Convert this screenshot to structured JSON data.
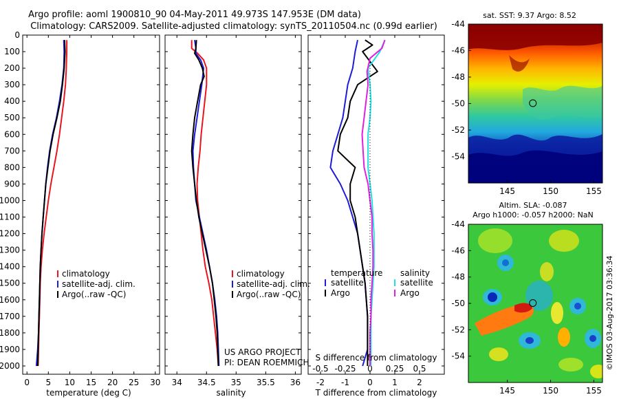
{
  "header": {
    "title_line1": "Argo profile: aoml 1900810_90 04-May-2011 49.973S 147.953E (DM data)",
    "title_line2": "Climatology: CARS2009. Satellite-adjusted climatology: synTS_20110504.nc (0.99d earlier)"
  },
  "credits": {
    "project": "US ARGO PROJECT",
    "pi": "PI: DEAN ROEMMICH",
    "imos": "©IMOS 03-Aug-2017 03:36:34"
  },
  "colors": {
    "climatology": "#e8141e",
    "satellite": "#1c1cd6",
    "argo": "#000000",
    "salinity_satellite": "#22e0e0",
    "salinity_argo": "#e020e0"
  },
  "chart_data": [
    {
      "id": "temperature",
      "type": "line",
      "xlabel": "temperature (deg C)",
      "xlim": [
        -1,
        31
      ],
      "xticks": [
        0,
        5,
        10,
        15,
        20,
        25,
        30
      ],
      "ylim": [
        0,
        2050
      ],
      "yticks": [
        0,
        100,
        200,
        300,
        400,
        500,
        600,
        700,
        800,
        900,
        1000,
        1100,
        1200,
        1300,
        1400,
        1500,
        1600,
        1700,
        1800,
        1900,
        2000
      ],
      "y_reversed": true,
      "legend": [
        "climatology",
        "satellite-adj. clim.",
        "Argo(..raw -QC)"
      ],
      "series": [
        {
          "name": "climatology",
          "color_key": "climatology",
          "points": [
            [
              9.3,
              30
            ],
            [
              9.3,
              100
            ],
            [
              9.2,
              200
            ],
            [
              9.0,
              300
            ],
            [
              8.6,
              400
            ],
            [
              8.1,
              500
            ],
            [
              7.6,
              600
            ],
            [
              7.0,
              700
            ],
            [
              6.3,
              800
            ],
            [
              5.6,
              900
            ],
            [
              5.0,
              1000
            ],
            [
              4.5,
              1100
            ],
            [
              4.0,
              1200
            ],
            [
              3.6,
              1300
            ],
            [
              3.3,
              1400
            ],
            [
              3.1,
              1500
            ],
            [
              3.0,
              1600
            ],
            [
              2.9,
              1700
            ],
            [
              2.8,
              1800
            ],
            [
              2.7,
              1900
            ],
            [
              2.6,
              2000
            ]
          ]
        },
        {
          "name": "satellite-adj. clim.",
          "color_key": "satellite",
          "points": [
            [
              8.6,
              30
            ],
            [
              8.7,
              100
            ],
            [
              8.6,
              200
            ],
            [
              8.2,
              300
            ],
            [
              7.6,
              400
            ],
            [
              6.9,
              500
            ],
            [
              6.0,
              600
            ],
            [
              5.3,
              700
            ],
            [
              4.8,
              800
            ],
            [
              4.4,
              900
            ],
            [
              4.1,
              1000
            ],
            [
              3.8,
              1100
            ],
            [
              3.5,
              1200
            ],
            [
              3.3,
              1300
            ],
            [
              3.1,
              1400
            ],
            [
              3.0,
              1500
            ],
            [
              2.9,
              1600
            ],
            [
              2.8,
              1700
            ],
            [
              2.7,
              1800
            ],
            [
              2.5,
              1900
            ],
            [
              2.2,
              2000
            ]
          ]
        },
        {
          "name": "Argo(..raw -QC)",
          "color_key": "argo",
          "points": [
            [
              8.8,
              30
            ],
            [
              8.9,
              100
            ],
            [
              8.7,
              200
            ],
            [
              8.3,
              300
            ],
            [
              7.8,
              400
            ],
            [
              7.0,
              500
            ],
            [
              6.1,
              600
            ],
            [
              5.4,
              700
            ],
            [
              4.9,
              800
            ],
            [
              4.4,
              900
            ],
            [
              4.1,
              1000
            ],
            [
              3.8,
              1100
            ],
            [
              3.5,
              1200
            ],
            [
              3.3,
              1300
            ],
            [
              3.1,
              1400
            ],
            [
              3.0,
              1500
            ],
            [
              2.9,
              1600
            ],
            [
              2.8,
              1700
            ],
            [
              2.7,
              1800
            ],
            [
              2.6,
              1900
            ],
            [
              2.5,
              2000
            ]
          ]
        }
      ]
    },
    {
      "id": "salinity",
      "type": "line",
      "xlabel": "salinity",
      "xlim": [
        33.8,
        36.1
      ],
      "xticks": [
        34,
        34.5,
        35,
        35.5,
        36
      ],
      "ylim": [
        0,
        2050
      ],
      "y_reversed": true,
      "legend": [
        "climatology",
        "satellite-adj. clim.",
        "Argo(..raw -QC)"
      ],
      "series": [
        {
          "name": "climatology",
          "color_key": "climatology",
          "points": [
            [
              34.25,
              30
            ],
            [
              34.25,
              80
            ],
            [
              34.35,
              110
            ],
            [
              34.45,
              150
            ],
            [
              34.5,
              200
            ],
            [
              34.5,
              300
            ],
            [
              34.47,
              400
            ],
            [
              34.44,
              500
            ],
            [
              34.41,
              600
            ],
            [
              34.39,
              700
            ],
            [
              34.36,
              800
            ],
            [
              34.34,
              900
            ],
            [
              34.35,
              1000
            ],
            [
              34.38,
              1100
            ],
            [
              34.41,
              1200
            ],
            [
              34.44,
              1300
            ],
            [
              34.48,
              1400
            ],
            [
              34.54,
              1500
            ],
            [
              34.59,
              1600
            ],
            [
              34.62,
              1700
            ],
            [
              34.65,
              1800
            ],
            [
              34.68,
              1900
            ],
            [
              34.7,
              2000
            ]
          ]
        },
        {
          "name": "satellite-adj. clim.",
          "color_key": "satellite",
          "points": [
            [
              34.3,
              30
            ],
            [
              34.32,
              80
            ],
            [
              34.32,
              110
            ],
            [
              34.4,
              150
            ],
            [
              34.45,
              200
            ],
            [
              34.42,
              300
            ],
            [
              34.38,
              400
            ],
            [
              34.34,
              500
            ],
            [
              34.3,
              600
            ],
            [
              34.27,
              700
            ],
            [
              34.28,
              800
            ],
            [
              34.3,
              900
            ],
            [
              34.32,
              1000
            ],
            [
              34.38,
              1100
            ],
            [
              34.44,
              1200
            ],
            [
              34.5,
              1300
            ],
            [
              34.55,
              1400
            ],
            [
              34.6,
              1500
            ],
            [
              34.64,
              1600
            ],
            [
              34.67,
              1700
            ],
            [
              34.69,
              1800
            ],
            [
              34.7,
              1900
            ],
            [
              34.71,
              2000
            ]
          ]
        },
        {
          "name": "Argo(..raw -QC)",
          "color_key": "argo",
          "points": [
            [
              34.33,
              30
            ],
            [
              34.32,
              80
            ],
            [
              34.3,
              110
            ],
            [
              34.37,
              150
            ],
            [
              34.43,
              200
            ],
            [
              34.46,
              250
            ],
            [
              34.4,
              300
            ],
            [
              34.35,
              400
            ],
            [
              34.3,
              500
            ],
            [
              34.27,
              600
            ],
            [
              34.25,
              700
            ],
            [
              34.27,
              800
            ],
            [
              34.3,
              900
            ],
            [
              34.33,
              1000
            ],
            [
              34.37,
              1100
            ],
            [
              34.43,
              1200
            ],
            [
              34.49,
              1300
            ],
            [
              34.55,
              1400
            ],
            [
              34.6,
              1500
            ],
            [
              34.63,
              1600
            ],
            [
              34.66,
              1700
            ],
            [
              34.68,
              1800
            ],
            [
              34.69,
              1900
            ],
            [
              34.7,
              2000
            ]
          ]
        }
      ]
    },
    {
      "id": "difference",
      "type": "line",
      "xlabel": "T difference from climatology",
      "xlabel_top": "S difference from climatology",
      "xlim": [
        -2.5,
        3.0
      ],
      "xticks": [
        -2,
        -1,
        0,
        1,
        2
      ],
      "xticks_top": [
        "-0.5",
        "-0.25",
        "0",
        "0.25",
        "0.5"
      ],
      "s_scale": 0.25,
      "ylim": [
        0,
        2050
      ],
      "y_reversed": true,
      "legend_left_title": "temperature",
      "legend_right_title": "salinity",
      "legend_left": [
        "satellite",
        "Argo"
      ],
      "legend_right": [
        "satellite",
        "Argo"
      ],
      "series": [
        {
          "name": "satellite",
          "quantity": "temperature",
          "color_key": "satellite",
          "points": [
            [
              -0.5,
              30
            ],
            [
              -0.6,
              100
            ],
            [
              -0.7,
              200
            ],
            [
              -0.9,
              300
            ],
            [
              -1.0,
              400
            ],
            [
              -1.1,
              500
            ],
            [
              -1.3,
              600
            ],
            [
              -1.5,
              700
            ],
            [
              -1.6,
              800
            ],
            [
              -1.2,
              900
            ],
            [
              -0.9,
              1000
            ],
            [
              -0.7,
              1100
            ],
            [
              -0.5,
              1200
            ],
            [
              -0.4,
              1300
            ],
            [
              -0.3,
              1400
            ],
            [
              -0.2,
              1500
            ],
            [
              -0.15,
              1600
            ],
            [
              -0.1,
              1700
            ],
            [
              -0.1,
              1800
            ],
            [
              -0.1,
              1900
            ],
            [
              -0.3,
              2000
            ]
          ]
        },
        {
          "name": "Argo",
          "quantity": "temperature",
          "color_key": "argo",
          "points": [
            [
              -0.2,
              30
            ],
            [
              0.1,
              60
            ],
            [
              -0.3,
              100
            ],
            [
              0.1,
              180
            ],
            [
              0.3,
              220
            ],
            [
              -0.5,
              300
            ],
            [
              -0.8,
              400
            ],
            [
              -0.9,
              500
            ],
            [
              -1.2,
              600
            ],
            [
              -1.3,
              700
            ],
            [
              -0.6,
              800
            ],
            [
              -0.8,
              900
            ],
            [
              -0.8,
              1000
            ],
            [
              -0.6,
              1100
            ],
            [
              -0.5,
              1200
            ],
            [
              -0.4,
              1300
            ],
            [
              -0.3,
              1400
            ],
            [
              -0.2,
              1500
            ],
            [
              -0.15,
              1600
            ],
            [
              -0.1,
              1700
            ],
            [
              -0.1,
              1800
            ],
            [
              -0.1,
              1900
            ],
            [
              -0.1,
              2000
            ]
          ]
        },
        {
          "name": "satellite",
          "quantity": "salinity",
          "color_key": "salinity_satellite",
          "points": [
            [
              0.15,
              30
            ],
            [
              0.1,
              100
            ],
            [
              -0.02,
              200
            ],
            [
              0.0,
              300
            ],
            [
              0.01,
              400
            ],
            [
              0.0,
              500
            ],
            [
              -0.02,
              600
            ],
            [
              -0.02,
              700
            ],
            [
              -0.02,
              800
            ],
            [
              0.0,
              900
            ],
            [
              0.02,
              1000
            ],
            [
              0.03,
              1100
            ],
            [
              0.04,
              1200
            ],
            [
              0.04,
              1300
            ],
            [
              0.04,
              1400
            ],
            [
              0.03,
              1500
            ],
            [
              0.02,
              1600
            ],
            [
              0.01,
              1700
            ],
            [
              0.01,
              1800
            ],
            [
              0.01,
              1900
            ],
            [
              0.01,
              2000
            ]
          ]
        },
        {
          "name": "Argo",
          "quantity": "salinity",
          "color_key": "salinity_argo",
          "points": [
            [
              0.15,
              30
            ],
            [
              0.12,
              80
            ],
            [
              0.0,
              140
            ],
            [
              -0.03,
              220
            ],
            [
              -0.02,
              300
            ],
            [
              -0.04,
              400
            ],
            [
              -0.06,
              500
            ],
            [
              -0.08,
              600
            ],
            [
              -0.07,
              700
            ],
            [
              -0.06,
              800
            ],
            [
              -0.02,
              900
            ],
            [
              0.0,
              1000
            ],
            [
              0.02,
              1100
            ],
            [
              0.02,
              1200
            ],
            [
              0.03,
              1300
            ],
            [
              0.03,
              1400
            ],
            [
              0.02,
              1500
            ],
            [
              0.01,
              1600
            ],
            [
              0.01,
              1700
            ],
            [
              0.0,
              1800
            ],
            [
              0.0,
              1900
            ],
            [
              0.0,
              2000
            ]
          ]
        }
      ]
    },
    {
      "id": "sst_map",
      "type": "heatmap",
      "title": "sat. SST: 9.37 Argo: 8.52",
      "xlim": [
        140.5,
        156.0
      ],
      "ylim": [
        -56,
        -44
      ],
      "xticks": [
        145,
        150,
        155
      ],
      "yticks": [
        -44,
        -46,
        -48,
        -50,
        -52,
        -54
      ],
      "float_position": [
        147.953,
        -49.973
      ]
    },
    {
      "id": "sla_map",
      "type": "heatmap",
      "title_line1": "Altim. SLA: -0.087",
      "title_line2": "Argo h1000: -0.057 h2000: NaN",
      "xlim": [
        140.5,
        156.0
      ],
      "ylim": [
        -56,
        -44
      ],
      "xticks": [
        145,
        150,
        155
      ],
      "yticks": [
        -44,
        -46,
        -48,
        -50,
        -52,
        -54
      ],
      "float_position": [
        147.953,
        -49.973
      ]
    }
  ]
}
